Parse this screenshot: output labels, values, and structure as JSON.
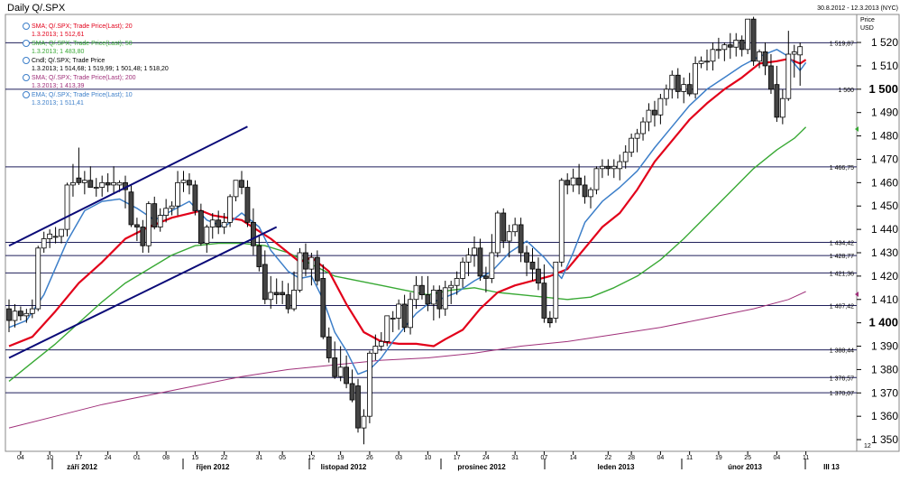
{
  "header": {
    "title": "Daily Q/.SPX",
    "date_range": "30.8.2012 - 12.3.2013 (NYC)",
    "price_label_1": "Price",
    "price_label_2": "USD"
  },
  "legend": [
    {
      "line1": "SMA; Q/.SPX; Trade Price(Last); 20",
      "line2": "1.3.2013; 1 512,61",
      "color": "#e2001a"
    },
    {
      "line1": "SMA; Q/.SPX; Trade Price(Last); 50",
      "line2": "1.3.2013; 1 483,80",
      "color": "#39a935"
    },
    {
      "line1": "Cndl; Q/.SPX; Trade Price",
      "line2": "1.3.2013; 1 514,68; 1 519,99; 1 501,48; 1 518,20",
      "color": "#000000"
    },
    {
      "line1": "SMA; Q/.SPX; Trade Price(Last); 200",
      "line2": "1.3.2013; 1 413,39",
      "color": "#a0307a"
    },
    {
      "line1": "EMA; Q/.SPX; Trade Price(Last); 10",
      "line2": "1.3.2013; 1 511,41",
      "color": "#3d7fc9"
    }
  ],
  "chart_data": {
    "type": "candlestick",
    "ylim": [
      1345,
      1532
    ],
    "y_ticks": [
      1350,
      1360,
      1370,
      1380,
      1390,
      1400,
      1410,
      1420,
      1430,
      1440,
      1450,
      1460,
      1470,
      1480,
      1490,
      1500,
      1510,
      1520
    ],
    "y_bold_ticks": [
      1400,
      1500
    ],
    "x_day_ticks": [
      "04",
      "10",
      "17",
      "24",
      "01",
      "08",
      "15",
      "22",
      "31",
      "05",
      "12",
      "19",
      "26",
      "03",
      "10",
      "17",
      "24",
      "31",
      "07",
      "14",
      "22",
      "28",
      "04",
      "11",
      "19",
      "25",
      "04",
      "11"
    ],
    "x_month_labels": [
      "září 2012",
      "říjen 2012",
      "listopad 2012",
      "prosinec 2012",
      "leden 2013",
      "únor 2013",
      "III 13"
    ],
    "x_last_tick_value": "12",
    "horizontal_levels": [
      {
        "value": 1519.87,
        "label": "1 519,87"
      },
      {
        "value": 1500.0,
        "label": "1 500"
      },
      {
        "value": 1466.75,
        "label": "1 466,75"
      },
      {
        "value": 1434.42,
        "label": "1 434,42"
      },
      {
        "value": 1428.77,
        "label": "1 428,77"
      },
      {
        "value": 1421.36,
        "label": "1 421,36"
      },
      {
        "value": 1407.42,
        "label": "1 407,42"
      },
      {
        "value": 1388.44,
        "label": "1 388,44"
      },
      {
        "value": 1376.57,
        "label": "1 376,57"
      },
      {
        "value": 1370.07,
        "label": "1 370,07"
      }
    ],
    "candles": [
      [
        1406,
        1410,
        1396,
        1401
      ],
      [
        1401,
        1408,
        1398,
        1405
      ],
      [
        1405,
        1407,
        1401,
        1403
      ],
      [
        1403,
        1406,
        1400,
        1404
      ],
      [
        1404,
        1410,
        1402,
        1406
      ],
      [
        1406,
        1433,
        1405,
        1432
      ],
      [
        1432,
        1439,
        1430,
        1436
      ],
      [
        1436,
        1440,
        1432,
        1438
      ],
      [
        1437,
        1441,
        1434,
        1437
      ],
      [
        1437,
        1440,
        1434,
        1440
      ],
      [
        1440,
        1460,
        1437,
        1459
      ],
      [
        1459,
        1468,
        1454,
        1460
      ],
      [
        1462,
        1475,
        1459,
        1460
      ],
      [
        1460,
        1465,
        1455,
        1461
      ],
      [
        1461,
        1467,
        1458,
        1458
      ],
      [
        1458,
        1462,
        1454,
        1458
      ],
      [
        1458,
        1463,
        1454,
        1460
      ],
      [
        1460,
        1464,
        1456,
        1459
      ],
      [
        1459,
        1467,
        1455,
        1460
      ],
      [
        1459,
        1461,
        1456,
        1460
      ],
      [
        1460,
        1463,
        1449,
        1457
      ],
      [
        1456,
        1459,
        1441,
        1442
      ],
      [
        1442,
        1445,
        1435,
        1441
      ],
      [
        1441,
        1444,
        1430,
        1433
      ],
      [
        1433,
        1452,
        1430,
        1451
      ],
      [
        1451,
        1454,
        1440,
        1441
      ],
      [
        1441,
        1449,
        1439,
        1446
      ],
      [
        1446,
        1453,
        1443,
        1449
      ],
      [
        1449,
        1452,
        1446,
        1450
      ],
      [
        1450,
        1465,
        1446,
        1460
      ],
      [
        1460,
        1465,
        1456,
        1461
      ],
      [
        1461,
        1464,
        1455,
        1459
      ],
      [
        1459,
        1461,
        1446,
        1448
      ],
      [
        1448,
        1451,
        1433,
        1434
      ],
      [
        1434,
        1442,
        1430,
        1441
      ],
      [
        1441,
        1447,
        1436,
        1444
      ],
      [
        1444,
        1448,
        1438,
        1441
      ],
      [
        1441,
        1447,
        1438,
        1443
      ],
      [
        1443,
        1455,
        1441,
        1454
      ],
      [
        1454,
        1461,
        1452,
        1461
      ],
      [
        1461,
        1465,
        1455,
        1458
      ],
      [
        1458,
        1461,
        1441,
        1443
      ],
      [
        1443,
        1449,
        1429,
        1433
      ],
      [
        1433,
        1437,
        1422,
        1424
      ],
      [
        1425,
        1431,
        1408,
        1410
      ],
      [
        1410,
        1420,
        1406,
        1413
      ],
      [
        1413,
        1419,
        1408,
        1412
      ],
      [
        1413,
        1418,
        1408,
        1412
      ],
      [
        1412,
        1417,
        1404,
        1406
      ],
      [
        1406,
        1422,
        1405,
        1414
      ],
      [
        1414,
        1432,
        1413,
        1430
      ],
      [
        1430,
        1434,
        1420,
        1423
      ],
      [
        1423,
        1430,
        1416,
        1428
      ],
      [
        1428,
        1431,
        1416,
        1418
      ],
      [
        1419,
        1425,
        1393,
        1394
      ],
      [
        1394,
        1398,
        1383,
        1385
      ],
      [
        1385,
        1392,
        1376,
        1377
      ],
      [
        1377,
        1390,
        1375,
        1381
      ],
      [
        1381,
        1386,
        1372,
        1374
      ],
      [
        1374,
        1380,
        1366,
        1367
      ],
      [
        1373,
        1376,
        1353,
        1355
      ],
      [
        1355,
        1363,
        1348,
        1360
      ],
      [
        1360,
        1388,
        1357,
        1387
      ],
      [
        1387,
        1395,
        1384,
        1390
      ],
      [
        1390,
        1396,
        1388,
        1392
      ],
      [
        1392,
        1403,
        1390,
        1403
      ],
      [
        1402,
        1405,
        1396,
        1402
      ],
      [
        1402,
        1410,
        1397,
        1408
      ],
      [
        1408,
        1412,
        1396,
        1398
      ],
      [
        1398,
        1413,
        1395,
        1410
      ],
      [
        1410,
        1420,
        1406,
        1416
      ],
      [
        1416,
        1420,
        1410,
        1412
      ],
      [
        1412,
        1420,
        1405,
        1408
      ],
      [
        1408,
        1416,
        1401,
        1414
      ],
      [
        1414,
        1416,
        1402,
        1406
      ],
      [
        1406,
        1418,
        1403,
        1415
      ],
      [
        1415,
        1418,
        1408,
        1416
      ],
      [
        1416,
        1422,
        1412,
        1419
      ],
      [
        1419,
        1428,
        1415,
        1426
      ],
      [
        1426,
        1432,
        1420,
        1429
      ],
      [
        1429,
        1437,
        1424,
        1432
      ],
      [
        1432,
        1436,
        1418,
        1420
      ],
      [
        1420,
        1424,
        1413,
        1419
      ],
      [
        1419,
        1438,
        1417,
        1430
      ],
      [
        1430,
        1448,
        1428,
        1447
      ],
      [
        1447,
        1449,
        1432,
        1435
      ],
      [
        1435,
        1442,
        1428,
        1439
      ],
      [
        1439,
        1445,
        1437,
        1442
      ],
      [
        1442,
        1445,
        1426,
        1430
      ],
      [
        1430,
        1433,
        1420,
        1426
      ],
      [
        1426,
        1432,
        1418,
        1423
      ],
      [
        1423,
        1428,
        1414,
        1417
      ],
      [
        1417,
        1425,
        1400,
        1402
      ],
      [
        1402,
        1405,
        1398,
        1400
      ],
      [
        1402,
        1426,
        1400,
        1426
      ],
      [
        1426,
        1462,
        1424,
        1461
      ],
      [
        1461,
        1464,
        1455,
        1459
      ],
      [
        1459,
        1466,
        1456,
        1462
      ],
      [
        1462,
        1468,
        1455,
        1459
      ],
      [
        1459,
        1463,
        1451,
        1454
      ],
      [
        1454,
        1458,
        1449,
        1457
      ],
      [
        1457,
        1467,
        1455,
        1466
      ],
      [
        1466,
        1470,
        1462,
        1467
      ],
      [
        1467,
        1470,
        1463,
        1466
      ],
      [
        1466,
        1470,
        1462,
        1467
      ],
      [
        1466,
        1472,
        1461,
        1469
      ],
      [
        1469,
        1476,
        1466,
        1473
      ],
      [
        1473,
        1481,
        1471,
        1479
      ],
      [
        1479,
        1483,
        1473,
        1481
      ],
      [
        1481,
        1488,
        1478,
        1486
      ],
      [
        1486,
        1494,
        1482,
        1491
      ],
      [
        1491,
        1495,
        1484,
        1489
      ],
      [
        1489,
        1498,
        1485,
        1496
      ],
      [
        1496,
        1502,
        1493,
        1500
      ],
      [
        1500,
        1508,
        1496,
        1506
      ],
      [
        1506,
        1509,
        1496,
        1499
      ],
      [
        1499,
        1505,
        1494,
        1502
      ],
      [
        1502,
        1507,
        1497,
        1498
      ],
      [
        1498,
        1514,
        1496,
        1511
      ],
      [
        1511,
        1514,
        1509,
        1512
      ],
      [
        1512,
        1517,
        1508,
        1512
      ],
      [
        1512,
        1520,
        1508,
        1517
      ],
      [
        1517,
        1522,
        1513,
        1517
      ],
      [
        1517,
        1520,
        1512,
        1519
      ],
      [
        1519,
        1524,
        1513,
        1518
      ],
      [
        1518,
        1524,
        1514,
        1521
      ],
      [
        1521,
        1523,
        1514,
        1517
      ],
      [
        1517,
        1530,
        1515,
        1530
      ],
      [
        1530,
        1531,
        1510,
        1512
      ],
      [
        1512,
        1517,
        1509,
        1516
      ],
      [
        1516,
        1520,
        1506,
        1510
      ],
      [
        1510,
        1515,
        1498,
        1500
      ],
      [
        1502,
        1510,
        1486,
        1488
      ],
      [
        1488,
        1500,
        1485,
        1496
      ],
      [
        1496,
        1525,
        1495,
        1515
      ],
      [
        1515,
        1519,
        1505,
        1516
      ],
      [
        1514.68,
        1519.99,
        1501.48,
        1518.2
      ]
    ],
    "sma20": [
      [
        0,
        1390
      ],
      [
        4,
        1394
      ],
      [
        8,
        1405
      ],
      [
        12,
        1417
      ],
      [
        16,
        1426
      ],
      [
        20,
        1436
      ],
      [
        24,
        1441
      ],
      [
        28,
        1445
      ],
      [
        33,
        1448
      ],
      [
        35,
        1446
      ],
      [
        40,
        1444
      ],
      [
        45,
        1436
      ],
      [
        50,
        1426
      ],
      [
        52,
        1428
      ],
      [
        55,
        1422
      ],
      [
        58,
        1408
      ],
      [
        61,
        1396
      ],
      [
        64,
        1392
      ],
      [
        67,
        1391
      ],
      [
        70,
        1391
      ],
      [
        73,
        1390
      ],
      [
        75,
        1393
      ],
      [
        78,
        1397
      ],
      [
        81,
        1406
      ],
      [
        84,
        1413
      ],
      [
        87,
        1416
      ],
      [
        90,
        1418
      ],
      [
        93,
        1420
      ],
      [
        96,
        1423
      ],
      [
        99,
        1432
      ],
      [
        102,
        1441
      ],
      [
        105,
        1447
      ],
      [
        108,
        1457
      ],
      [
        111,
        1469
      ],
      [
        114,
        1478
      ],
      [
        117,
        1487
      ],
      [
        120,
        1494
      ],
      [
        123,
        1500
      ],
      [
        126,
        1505
      ],
      [
        129,
        1511
      ],
      [
        132,
        1512
      ],
      [
        134,
        1513
      ],
      [
        136,
        1511
      ],
      [
        137,
        1512.61
      ]
    ],
    "sma50": [
      [
        0,
        1375
      ],
      [
        4,
        1383
      ],
      [
        8,
        1391
      ],
      [
        12,
        1400
      ],
      [
        16,
        1409
      ],
      [
        20,
        1417
      ],
      [
        24,
        1423
      ],
      [
        28,
        1429
      ],
      [
        32,
        1433
      ],
      [
        36,
        1434
      ],
      [
        40,
        1434
      ],
      [
        44,
        1433
      ],
      [
        48,
        1430
      ],
      [
        52,
        1425
      ],
      [
        56,
        1420
      ],
      [
        60,
        1418
      ],
      [
        64,
        1416
      ],
      [
        68,
        1414
      ],
      [
        72,
        1412
      ],
      [
        76,
        1414
      ],
      [
        80,
        1415
      ],
      [
        84,
        1413
      ],
      [
        88,
        1412
      ],
      [
        92,
        1411
      ],
      [
        96,
        1410
      ],
      [
        100,
        1411
      ],
      [
        104,
        1415
      ],
      [
        108,
        1420
      ],
      [
        112,
        1427
      ],
      [
        116,
        1436
      ],
      [
        120,
        1446
      ],
      [
        124,
        1456
      ],
      [
        128,
        1466
      ],
      [
        132,
        1474
      ],
      [
        135,
        1479
      ],
      [
        137,
        1483.8
      ]
    ],
    "sma200": [
      [
        0,
        1355
      ],
      [
        8,
        1360
      ],
      [
        16,
        1365
      ],
      [
        24,
        1369
      ],
      [
        32,
        1373
      ],
      [
        40,
        1377
      ],
      [
        48,
        1380
      ],
      [
        56,
        1382
      ],
      [
        64,
        1384
      ],
      [
        72,
        1385
      ],
      [
        80,
        1387
      ],
      [
        88,
        1390
      ],
      [
        96,
        1392
      ],
      [
        104,
        1395
      ],
      [
        112,
        1398
      ],
      [
        120,
        1402
      ],
      [
        128,
        1406
      ],
      [
        134,
        1410
      ],
      [
        137,
        1413.39
      ]
    ],
    "ema10": [
      [
        0,
        1398
      ],
      [
        3,
        1401
      ],
      [
        6,
        1412
      ],
      [
        10,
        1435
      ],
      [
        13,
        1448
      ],
      [
        16,
        1452
      ],
      [
        19,
        1453
      ],
      [
        22,
        1449
      ],
      [
        25,
        1444
      ],
      [
        28,
        1448
      ],
      [
        31,
        1452
      ],
      [
        34,
        1444
      ],
      [
        37,
        1441
      ],
      [
        40,
        1447
      ],
      [
        43,
        1441
      ],
      [
        45,
        1431
      ],
      [
        48,
        1422
      ],
      [
        50,
        1419
      ],
      [
        52,
        1420
      ],
      [
        54,
        1410
      ],
      [
        56,
        1396
      ],
      [
        58,
        1388
      ],
      [
        60,
        1378
      ],
      [
        62,
        1380
      ],
      [
        64,
        1385
      ],
      [
        66,
        1392
      ],
      [
        68,
        1398
      ],
      [
        70,
        1404
      ],
      [
        72,
        1408
      ],
      [
        74,
        1410
      ],
      [
        77,
        1413
      ],
      [
        80,
        1418
      ],
      [
        83,
        1422
      ],
      [
        86,
        1430
      ],
      [
        89,
        1435
      ],
      [
        92,
        1428
      ],
      [
        95,
        1419
      ],
      [
        97,
        1430
      ],
      [
        99,
        1443
      ],
      [
        102,
        1452
      ],
      [
        105,
        1458
      ],
      [
        108,
        1465
      ],
      [
        111,
        1475
      ],
      [
        114,
        1484
      ],
      [
        117,
        1493
      ],
      [
        120,
        1500
      ],
      [
        123,
        1505
      ],
      [
        126,
        1510
      ],
      [
        129,
        1514
      ],
      [
        132,
        1517
      ],
      [
        134,
        1514
      ],
      [
        136,
        1508
      ],
      [
        137,
        1511.41
      ]
    ],
    "trend_lines": [
      {
        "from": {
          "candle": 0,
          "value": 1433
        },
        "to": {
          "candle": 41,
          "value": 1484
        }
      },
      {
        "from": {
          "candle": 0,
          "value": 1385
        },
        "to": {
          "candle": 46,
          "value": 1441
        }
      }
    ]
  }
}
